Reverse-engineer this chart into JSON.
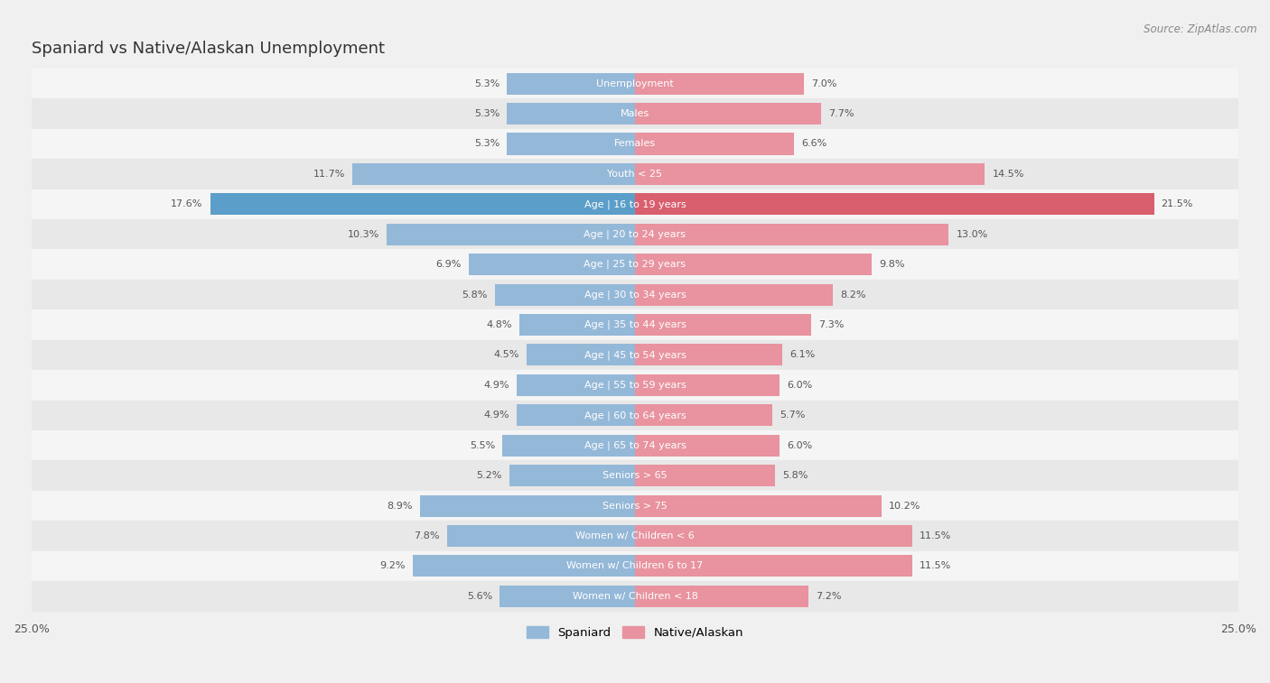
{
  "title": "Spaniard vs Native/Alaskan Unemployment",
  "source": "Source: ZipAtlas.com",
  "categories": [
    "Unemployment",
    "Males",
    "Females",
    "Youth < 25",
    "Age | 16 to 19 years",
    "Age | 20 to 24 years",
    "Age | 25 to 29 years",
    "Age | 30 to 34 years",
    "Age | 35 to 44 years",
    "Age | 45 to 54 years",
    "Age | 55 to 59 years",
    "Age | 60 to 64 years",
    "Age | 65 to 74 years",
    "Seniors > 65",
    "Seniors > 75",
    "Women w/ Children < 6",
    "Women w/ Children 6 to 17",
    "Women w/ Children < 18"
  ],
  "spaniard": [
    5.3,
    5.3,
    5.3,
    11.7,
    17.6,
    10.3,
    6.9,
    5.8,
    4.8,
    4.5,
    4.9,
    4.9,
    5.5,
    5.2,
    8.9,
    7.8,
    9.2,
    5.6
  ],
  "native": [
    7.0,
    7.7,
    6.6,
    14.5,
    21.5,
    13.0,
    9.8,
    8.2,
    7.3,
    6.1,
    6.0,
    5.7,
    6.0,
    5.8,
    10.2,
    11.5,
    11.5,
    7.2
  ],
  "x_max": 25.0,
  "spaniard_color": "#94b8d8",
  "native_color": "#e8939f",
  "spaniard_highlight_color": "#5b9ec9",
  "native_highlight_color": "#d95f6e",
  "row_colors": [
    "#f5f5f5",
    "#e8e8e8"
  ],
  "highlight_row_color": "#ddeeff",
  "bg_color": "#f0f0f0",
  "value_color": "#555555",
  "title_fontsize": 13,
  "source_fontsize": 8.5,
  "bar_label_fontsize": 8,
  "value_fontsize": 8,
  "legend_label_spaniard": "Spaniard",
  "legend_label_native": "Native/Alaskan"
}
